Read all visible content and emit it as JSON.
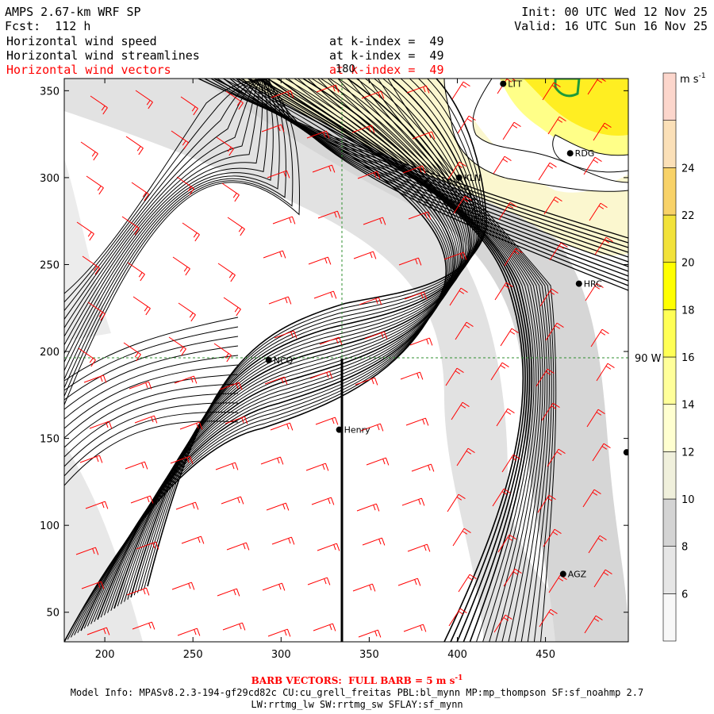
{
  "header": {
    "title": "AMPS 2.67-km WRF SP",
    "forecast": "Fcst:  112 h",
    "init": "Init: 00 UTC Wed 12 Nov 25",
    "valid": "Valid: 16 UTC Sun 16 Nov 25",
    "fields": [
      {
        "name": "Horizontal wind speed",
        "level": "at k-index =  49",
        "color": "#000000"
      },
      {
        "name": "Horizontal wind streamlines",
        "level": "at k-index =  49",
        "color": "#000000"
      },
      {
        "name": "Horizontal wind vectors",
        "level": "at k-index =  49",
        "color": "#ff0000"
      }
    ]
  },
  "axes": {
    "x_ticks": [
      "200",
      "250",
      "300",
      "350",
      "400",
      "450"
    ],
    "y_ticks": [
      "350",
      "300",
      "250",
      "200",
      "150",
      "100",
      "50"
    ],
    "x_range": [
      177,
      497
    ],
    "y_range": [
      33,
      357
    ]
  },
  "map_labels": {
    "longitude_180": "180",
    "longitude_90w": "90 W"
  },
  "stations": [
    {
      "name": "NCQ",
      "x": 293,
      "y": 195
    },
    {
      "name": "Henry",
      "x": 333,
      "y": 155
    },
    {
      "name": "KLN",
      "x": 401,
      "y": 300
    },
    {
      "name": "RDG",
      "x": 464,
      "y": 314
    },
    {
      "name": "HRC",
      "x": 469,
      "y": 239
    },
    {
      "name": "AGZ",
      "x": 460,
      "y": 72
    },
    {
      "name": "LTT",
      "x": 426,
      "y": 354
    },
    {
      "name": "",
      "x": 496,
      "y": 142
    }
  ],
  "colorbar": {
    "units": "m s",
    "units_exp": "-1",
    "levels": [
      {
        "label": "6",
        "color": "#f8f8f8"
      },
      {
        "label": "8",
        "color": "#e6e6e6"
      },
      {
        "label": "10",
        "color": "#d4d4d4"
      },
      {
        "label": "12",
        "color": "#f0f0dc"
      },
      {
        "label": "14",
        "color": "#ffffd0"
      },
      {
        "label": "16",
        "color": "#ffff9a"
      },
      {
        "label": "18",
        "color": "#ffff55"
      },
      {
        "label": "20",
        "color": "#ffff00"
      },
      {
        "label": "22",
        "color": "#f2e23a"
      },
      {
        "label": "24",
        "color": "#f8d268"
      },
      {
        "label": "",
        "color": "#fbe0b8"
      },
      {
        "label": "",
        "color": "#fcd6cc"
      }
    ]
  },
  "footer": {
    "barb_text": "BARB VECTORS:  FULL BARB = 5 m s",
    "barb_exp": "-1",
    "model_info": "Model Info: MPASv8.2.3-194-gf29cd82c CU:cu_grell_freitas PBL:bl_mynn MP:mp_thompson SF:sf_noahmp 2.7",
    "model_info2": "LW:rrtmg_lw SW:rrtmg_sw SFLAY:sf_mynn"
  }
}
